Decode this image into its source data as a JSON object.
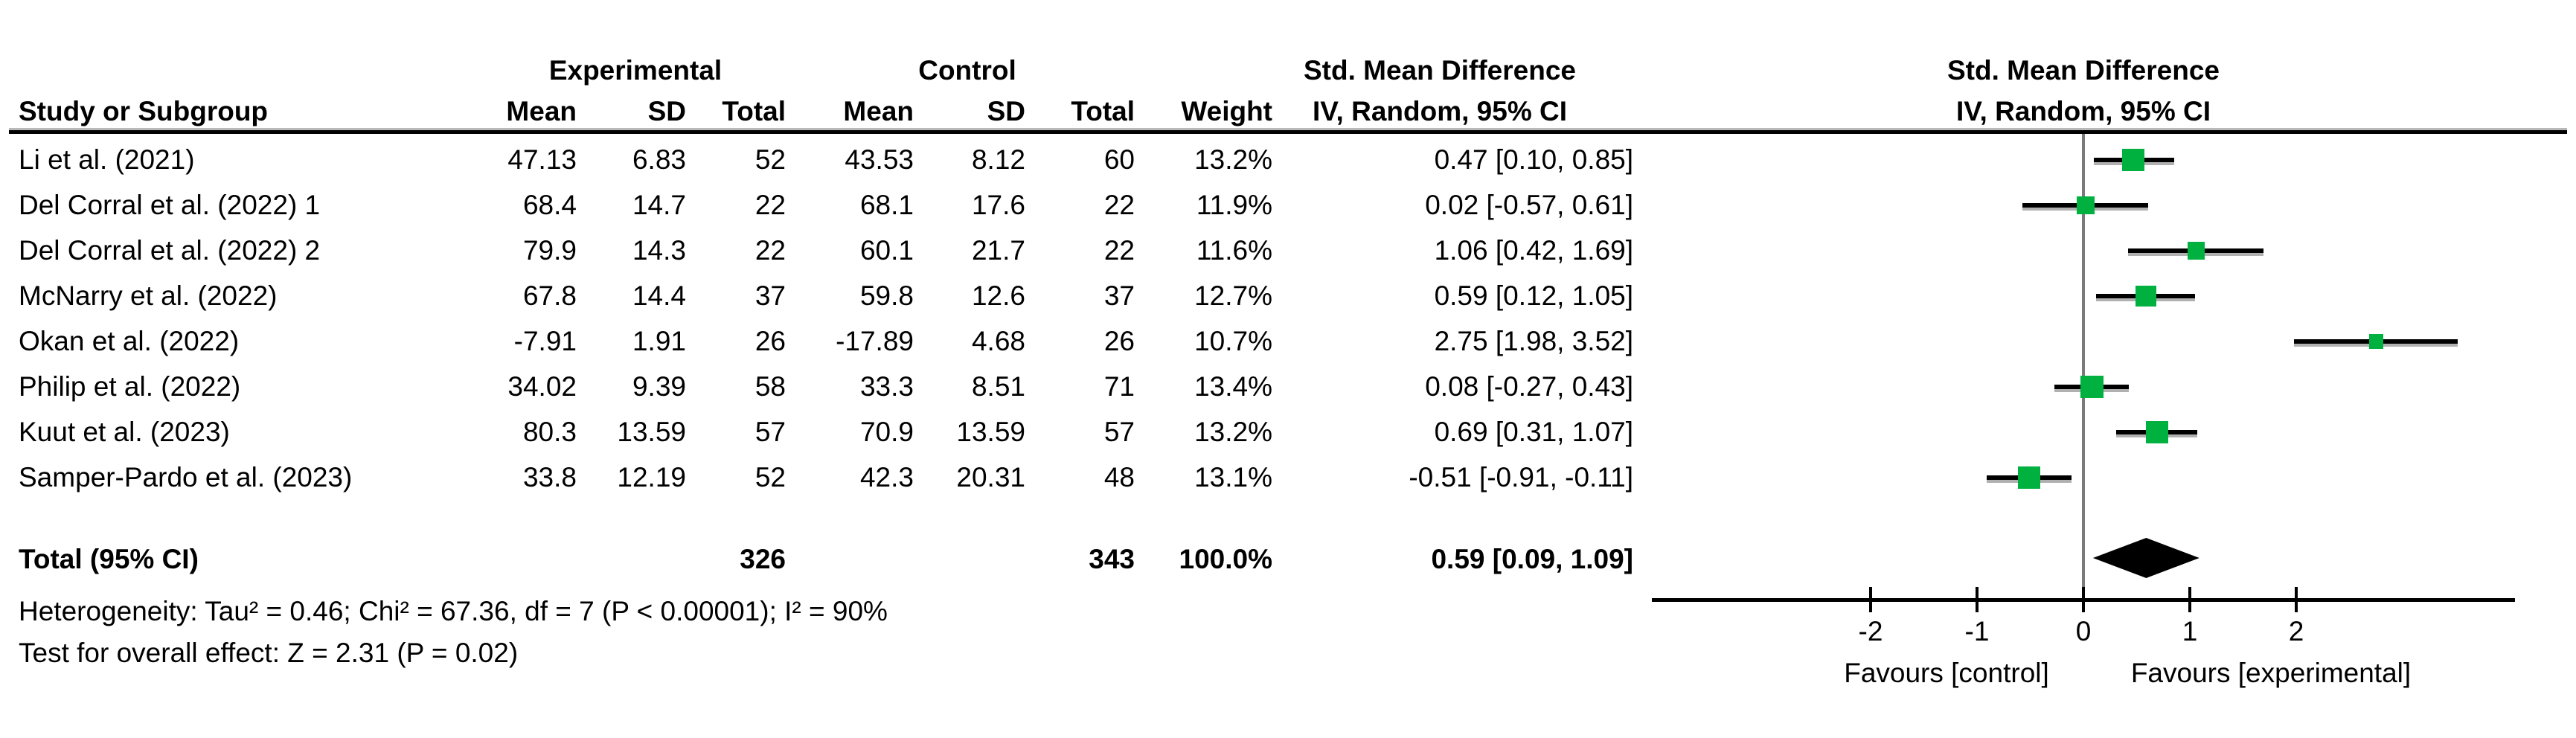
{
  "colors": {
    "marker": "#00b140",
    "zero_line": "#7a7a7a",
    "ink": "#000000",
    "ci_shadow": "#b0b0b0"
  },
  "header": {
    "group_experimental": "Experimental",
    "group_control": "Control",
    "smd_line1": "Std. Mean Difference",
    "smd_line2": "IV, Random, 95% CI",
    "plot_line1": "Std. Mean Difference",
    "plot_line2": "IV, Random, 95% CI",
    "study_col": "Study or Subgroup",
    "mean": "Mean",
    "sd": "SD",
    "total": "Total",
    "weight": "Weight"
  },
  "chart_data": {
    "type": "forest",
    "effect_measure": "Std. Mean Difference",
    "model": "IV, Random, 95% CI",
    "studies": [
      {
        "name": "Li et al. (2021)",
        "exp": {
          "mean": "47.13",
          "sd": "6.83",
          "total": "52"
        },
        "ctrl": {
          "mean": "43.53",
          "sd": "8.12",
          "total": "60"
        },
        "weight": "13.2%",
        "ci_text": "0.47 [0.10, 0.85]",
        "smd": [
          0.47,
          0.1,
          0.85
        ]
      },
      {
        "name": "Del Corral et al. (2022) 1",
        "exp": {
          "mean": "68.4",
          "sd": "14.7",
          "total": "22"
        },
        "ctrl": {
          "mean": "68.1",
          "sd": "17.6",
          "total": "22"
        },
        "weight": "11.9%",
        "ci_text": "0.02 [-0.57, 0.61]",
        "smd": [
          0.02,
          -0.57,
          0.61
        ]
      },
      {
        "name": "Del Corral et al. (2022) 2",
        "exp": {
          "mean": "79.9",
          "sd": "14.3",
          "total": "22"
        },
        "ctrl": {
          "mean": "60.1",
          "sd": "21.7",
          "total": "22"
        },
        "weight": "11.6%",
        "ci_text": "1.06 [0.42, 1.69]",
        "smd": [
          1.06,
          0.42,
          1.69
        ]
      },
      {
        "name": "McNarry et al. (2022)",
        "exp": {
          "mean": "67.8",
          "sd": "14.4",
          "total": "37"
        },
        "ctrl": {
          "mean": "59.8",
          "sd": "12.6",
          "total": "37"
        },
        "weight": "12.7%",
        "ci_text": "0.59 [0.12, 1.05]",
        "smd": [
          0.59,
          0.12,
          1.05
        ]
      },
      {
        "name": "Okan et al. (2022)",
        "exp": {
          "mean": "-7.91",
          "sd": "1.91",
          "total": "26"
        },
        "ctrl": {
          "mean": "-17.89",
          "sd": "4.68",
          "total": "26"
        },
        "weight": "10.7%",
        "ci_text": "2.75 [1.98, 3.52]",
        "smd": [
          2.75,
          1.98,
          3.52
        ]
      },
      {
        "name": "Philip et al. (2022)",
        "exp": {
          "mean": "34.02",
          "sd": "9.39",
          "total": "58"
        },
        "ctrl": {
          "mean": "33.3",
          "sd": "8.51",
          "total": "71"
        },
        "weight": "13.4%",
        "ci_text": "0.08 [-0.27, 0.43]",
        "smd": [
          0.08,
          -0.27,
          0.43
        ]
      },
      {
        "name": "Kuut et al. (2023)",
        "exp": {
          "mean": "80.3",
          "sd": "13.59",
          "total": "57"
        },
        "ctrl": {
          "mean": "70.9",
          "sd": "13.59",
          "total": "57"
        },
        "weight": "13.2%",
        "ci_text": "0.69 [0.31, 1.07]",
        "smd": [
          0.69,
          0.31,
          1.07
        ]
      },
      {
        "name": "Samper-Pardo et al. (2023)",
        "exp": {
          "mean": "33.8",
          "sd": "12.19",
          "total": "52"
        },
        "ctrl": {
          "mean": "42.3",
          "sd": "20.31",
          "total": "48"
        },
        "weight": "13.1%",
        "ci_text": "-0.51 [-0.91, -0.11]",
        "smd": [
          -0.51,
          -0.91,
          -0.11
        ]
      }
    ],
    "total": {
      "label": "Total (95% CI)",
      "exp_total": "326",
      "ctrl_total": "343",
      "weight": "100.0%",
      "ci_text": "0.59 [0.09, 1.09]",
      "smd": [
        0.59,
        0.09,
        1.09
      ]
    },
    "heterogeneity": "Heterogeneity: Tau² = 0.46; Chi² = 67.36, df = 7 (P < 0.00001); I² = 90%",
    "overall_effect": "Test for overall effect: Z = 2.31 (P = 0.02)",
    "axis": {
      "ticks": [
        -2,
        -1,
        0,
        1,
        2
      ],
      "range": [
        -4.05,
        4.05
      ],
      "favours_left": "Favours [control]",
      "favours_right": "Favours [experimental]"
    }
  }
}
